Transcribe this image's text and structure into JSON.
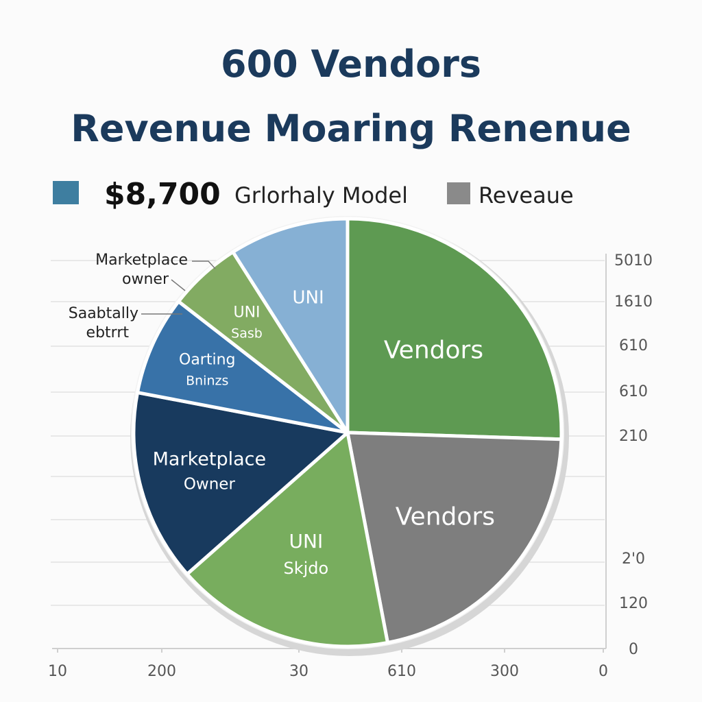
{
  "chart_data": {
    "type": "pie",
    "title": [
      "600 Vendors",
      "Revenue Moaring Renenue"
    ],
    "legend": [
      {
        "value": "$8,700",
        "label": "Grlorhaly Model",
        "color": "#3e7ea0"
      },
      {
        "label": "Reveaue",
        "color": "#8a8a8a"
      }
    ],
    "slices": [
      {
        "lines": [
          "Vendors"
        ],
        "value": 25.5,
        "color": "#5e9a52"
      },
      {
        "lines": [
          "Vendors"
        ],
        "value": 21.5,
        "color": "#7e7e7e"
      },
      {
        "lines": [
          "UNI",
          "Skjdo"
        ],
        "value": 16.5,
        "color": "#78ad5e"
      },
      {
        "lines": [
          "Marketplace",
          "Owner"
        ],
        "value": 14.5,
        "color": "#183a5e"
      },
      {
        "lines": [
          "Oarting",
          "Bninzs"
        ],
        "value": 7.5,
        "color": "#3872a8"
      },
      {
        "lines": [
          "UNI",
          "Sasb"
        ],
        "value": 5.5,
        "color": "#82ab62"
      },
      {
        "lines": [
          "UNI"
        ],
        "value": 9,
        "color": "#86b0d4"
      }
    ],
    "callouts": [
      {
        "lines": [
          "Marketplace",
          "owner"
        ]
      },
      {
        "lines": [
          "Saabtally",
          "ebtrrt"
        ]
      }
    ],
    "x_ticks": [
      "10",
      "200",
      "30",
      "610",
      "300",
      "0"
    ],
    "y_ticks": [
      "5010",
      "1610",
      "610",
      "610",
      "210",
      "2'0",
      "120",
      "0"
    ]
  }
}
